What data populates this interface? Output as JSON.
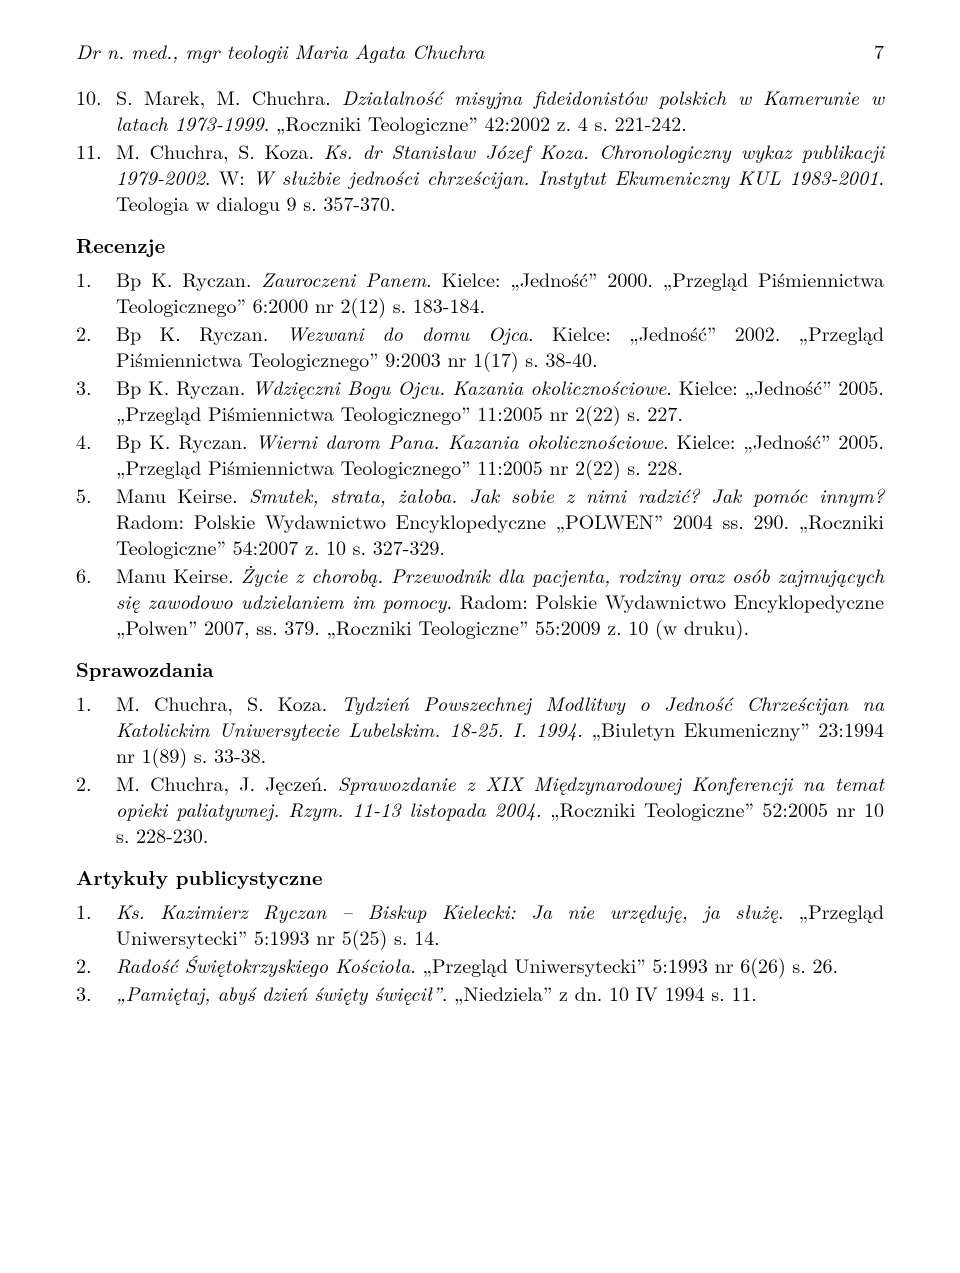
{
  "header": {
    "running_title": "Dr n. med., mgr teologii Maria Agata Chuchra",
    "page_number": "7"
  },
  "top_items": [
    {
      "html": "S. Marek, M. Chuchra. <span class=\"italic\">Działalność misyjna fideidonistów polskich w Kamerunie w latach 1973-1999</span>. „Roczniki Teologiczne” 42:2002 z. 4 s. 221-242."
    },
    {
      "html": "M. Chuchra, S. Koza. <span class=\"italic\">Ks. dr Stanisław Józef Koza. Chronologiczny wykaz publikacji 1979-2002</span>. W: <span class=\"italic\">W służbie jedności chrześcijan. Instytut Ekumeniczny KUL 1983-2001</span>. Teologia w dialogu 9 s. 357-370."
    }
  ],
  "top_start": 9,
  "sections": [
    {
      "heading": "Recenzje",
      "start": 0,
      "items": [
        {
          "html": "Bp K. Ryczan. <span class=\"italic\">Zauroczeni Panem</span>. Kielce: „Jedność” 2000. „Przegląd Piśmiennictwa Teologicznego” 6:2000 nr 2(12) s. 183-184."
        },
        {
          "html": "Bp K. Ryczan. <span class=\"italic\">Wezwani do domu Ojca</span>. Kielce: „Jedność” 2002. „Przegląd Piśmiennictwa Teologicznego” 9:2003 nr 1(17) s. 38-40."
        },
        {
          "html": "Bp K. Ryczan. <span class=\"italic\">Wdzięczni Bogu Ojcu. Kazania okolicznościowe</span>. Kielce: „Jedność” 2005. „Przegląd Piśmiennictwa Teologicznego” 11:2005 nr 2(22) s. 227."
        },
        {
          "html": "Bp K. Ryczan. <span class=\"italic\">Wierni darom Pana. Kazania okolicznościowe</span>. Kielce: „Jedność” 2005. „Przegląd Piśmiennictwa Teologicznego” 11:2005 nr 2(22) s. 228."
        },
        {
          "html": "Manu Keirse. <span class=\"italic\">Smutek, strata, żałoba. Jak sobie z nimi radzić? Jak pomóc innym?</span> Radom: Polskie Wydawnictwo Encyklopedyczne „POLWEN” 2004 ss. 290. „Roczniki Teologiczne” 54:2007 z. 10 s. 327-329."
        },
        {
          "html": "Manu Keirse. <span class=\"italic\">Życie z chorobą. Przewodnik dla pacjenta, rodziny oraz osób zajmujących się zawodowo udzielaniem im pomocy</span>. Radom: Polskie Wydawnictwo Encyklopedyczne „Polwen” 2007, ss. 379. „Roczniki Teologiczne” 55:2009 z. 10 (w druku)."
        }
      ]
    },
    {
      "heading": "Sprawozdania",
      "start": 0,
      "items": [
        {
          "html": "M. Chuchra, S. Koza. <span class=\"italic\">Tydzień Powszechnej Modlitwy o Jedność Chrześcijan na Katolickim Uniwersytecie Lubelskim. 18-25. I. 1994.</span> „Biuletyn Ekumeniczny” 23:1994 nr 1(89) s. 33-38."
        },
        {
          "html": "M. Chuchra, J. Jęczeń. <span class=\"italic\">Sprawozdanie z XIX Międzynarodowej Konferencji na temat opieki paliatywnej. Rzym. 11-13 listopada 2004.</span> „Roczniki Teologiczne” 52:2005 nr 10 s. 228-230."
        }
      ]
    },
    {
      "heading": "Artykuły publicystyczne",
      "start": 0,
      "items": [
        {
          "html": "<span class=\"italic\">Ks. Kazimierz Ryczan – Biskup Kielecki: Ja nie urzęduję, ja służę</span>. „Przegląd Uniwersytecki” 5:1993 nr 5(25) s. 14."
        },
        {
          "html": "<span class=\"italic\">Radość Świętokrzyskiego Kościoła</span>. „Przegląd Uniwersytecki” 5:1993 nr 6(26) s. 26."
        },
        {
          "html": "<span class=\"italic\">„Pamiętaj, abyś dzień święty święcił”</span>. „Niedziela” z dn. 10 IV 1994 s. 11."
        }
      ]
    }
  ]
}
